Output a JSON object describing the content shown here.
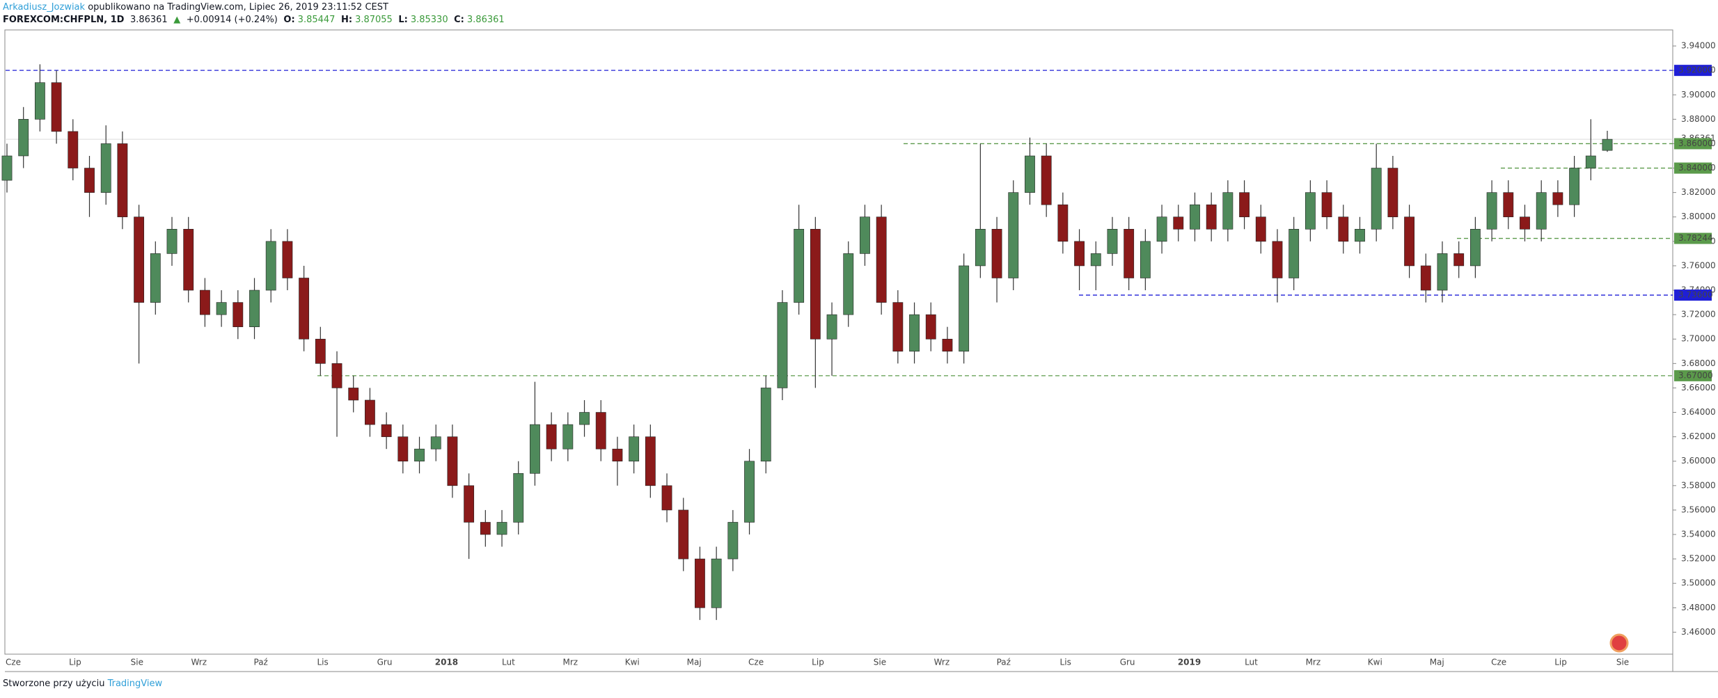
{
  "header": {
    "author": "Arkadiusz_Jozwiak",
    "published": "opublikowano na TradingView.com, Lipiec 26, 2019 23:11:52 CEST",
    "symbol": "FOREXCOM:CHFPLN, 1D",
    "price": "3.86361",
    "change_arrow": "▲",
    "change": "+0.00914 (+0.24%)",
    "o_label": "O:",
    "o": "3.85447",
    "h_label": "H:",
    "h": "3.87055",
    "l_label": "L:",
    "l": "3.85330",
    "c_label": "C:",
    "c": "3.86361"
  },
  "footer": {
    "made_with": "Stworzone przy użyciu",
    "brand": "TradingView"
  },
  "chart_data": {
    "type": "candlestick",
    "up_color": "#4f8a5b",
    "down_color": "#8b1a1a",
    "ylim": [
      3.442,
      3.952
    ],
    "yticks": [
      {
        "value": 3.46,
        "label": "3.46000"
      },
      {
        "value": 3.48,
        "label": "3.48000"
      },
      {
        "value": 3.5,
        "label": "3.50000"
      },
      {
        "value": 3.52,
        "label": "3.52000"
      },
      {
        "value": 3.54,
        "label": "3.54000"
      },
      {
        "value": 3.56,
        "label": "3.56000"
      },
      {
        "value": 3.58,
        "label": "3.58000"
      },
      {
        "value": 3.6,
        "label": "3.60000"
      },
      {
        "value": 3.62,
        "label": "3.62000"
      },
      {
        "value": 3.64,
        "label": "3.64000"
      },
      {
        "value": 3.66,
        "label": "3.66000"
      },
      {
        "value": 3.68,
        "label": "3.68000"
      },
      {
        "value": 3.7,
        "label": "3.70000"
      },
      {
        "value": 3.72,
        "label": "3.72000"
      },
      {
        "value": 3.74,
        "label": "3.74000"
      },
      {
        "value": 3.76,
        "label": "3.76000"
      },
      {
        "value": 3.78,
        "label": "3.78000"
      },
      {
        "value": 3.8,
        "label": "3.80000"
      },
      {
        "value": 3.82,
        "label": "3.82000"
      },
      {
        "value": 3.84,
        "label": "3.84000"
      },
      {
        "value": 3.86,
        "label": "3.86000"
      },
      {
        "value": 3.88,
        "label": "3.88000"
      },
      {
        "value": 3.9,
        "label": "3.90000"
      },
      {
        "value": 3.92,
        "label": "3.92000"
      },
      {
        "value": 3.94,
        "label": "3.94000"
      }
    ],
    "xlabels": [
      "Cze",
      "Lip",
      "Sie",
      "Wrz",
      "Paź",
      "Lis",
      "Gru",
      "2018",
      "Lut",
      "Mrz",
      "Kwi",
      "Maj",
      "Cze",
      "Lip",
      "Sie",
      "Wrz",
      "Paź",
      "Lis",
      "Gru",
      "2019",
      "Lut",
      "Mrz",
      "Kwi",
      "Maj",
      "Cze",
      "Lip",
      "Sie"
    ],
    "levels": [
      {
        "value": 3.92,
        "label": "3.92000",
        "color": "#1f1fd6"
      },
      {
        "value": 3.86,
        "label": "3.86000",
        "color": "#5b9a4b"
      },
      {
        "value": 3.84,
        "label": "3.84000",
        "color": "#5b9a4b"
      },
      {
        "value": 3.78244,
        "label": "3.78244",
        "color": "#5b9a4b"
      },
      {
        "value": 3.736,
        "label": "3.73600",
        "color": "#1f1fd6"
      },
      {
        "value": 3.67,
        "label": "3.67000",
        "color": "#5b9a4b"
      }
    ],
    "last_price": {
      "value": 3.86361,
      "label": "3.86361"
    },
    "ohlc": [
      [
        3.83,
        3.86,
        3.82,
        3.85
      ],
      [
        3.85,
        3.89,
        3.84,
        3.88
      ],
      [
        3.88,
        3.925,
        3.87,
        3.91
      ],
      [
        3.91,
        3.92,
        3.86,
        3.87
      ],
      [
        3.87,
        3.88,
        3.83,
        3.84
      ],
      [
        3.84,
        3.85,
        3.8,
        3.82
      ],
      [
        3.82,
        3.875,
        3.81,
        3.86
      ],
      [
        3.86,
        3.87,
        3.79,
        3.8
      ],
      [
        3.8,
        3.81,
        3.68,
        3.73
      ],
      [
        3.73,
        3.78,
        3.72,
        3.77
      ],
      [
        3.77,
        3.8,
        3.76,
        3.79
      ],
      [
        3.79,
        3.8,
        3.73,
        3.74
      ],
      [
        3.74,
        3.75,
        3.71,
        3.72
      ],
      [
        3.72,
        3.74,
        3.71,
        3.73
      ],
      [
        3.73,
        3.74,
        3.7,
        3.71
      ],
      [
        3.71,
        3.75,
        3.7,
        3.74
      ],
      [
        3.74,
        3.79,
        3.73,
        3.78
      ],
      [
        3.78,
        3.79,
        3.74,
        3.75
      ],
      [
        3.75,
        3.76,
        3.69,
        3.7
      ],
      [
        3.7,
        3.71,
        3.67,
        3.68
      ],
      [
        3.68,
        3.69,
        3.62,
        3.66
      ],
      [
        3.66,
        3.67,
        3.64,
        3.65
      ],
      [
        3.65,
        3.66,
        3.62,
        3.63
      ],
      [
        3.63,
        3.64,
        3.61,
        3.62
      ],
      [
        3.62,
        3.63,
        3.59,
        3.6
      ],
      [
        3.6,
        3.62,
        3.59,
        3.61
      ],
      [
        3.61,
        3.63,
        3.6,
        3.62
      ],
      [
        3.62,
        3.63,
        3.57,
        3.58
      ],
      [
        3.58,
        3.59,
        3.52,
        3.55
      ],
      [
        3.55,
        3.56,
        3.53,
        3.54
      ],
      [
        3.54,
        3.56,
        3.53,
        3.55
      ],
      [
        3.55,
        3.6,
        3.54,
        3.59
      ],
      [
        3.59,
        3.665,
        3.58,
        3.63
      ],
      [
        3.63,
        3.64,
        3.6,
        3.61
      ],
      [
        3.61,
        3.64,
        3.6,
        3.63
      ],
      [
        3.63,
        3.65,
        3.62,
        3.64
      ],
      [
        3.64,
        3.65,
        3.6,
        3.61
      ],
      [
        3.61,
        3.62,
        3.58,
        3.6
      ],
      [
        3.6,
        3.63,
        3.59,
        3.62
      ],
      [
        3.62,
        3.63,
        3.57,
        3.58
      ],
      [
        3.58,
        3.59,
        3.55,
        3.56
      ],
      [
        3.56,
        3.57,
        3.51,
        3.52
      ],
      [
        3.52,
        3.53,
        3.47,
        3.48
      ],
      [
        3.48,
        3.53,
        3.47,
        3.52
      ],
      [
        3.52,
        3.56,
        3.51,
        3.55
      ],
      [
        3.55,
        3.61,
        3.54,
        3.6
      ],
      [
        3.6,
        3.67,
        3.59,
        3.66
      ],
      [
        3.66,
        3.74,
        3.65,
        3.73
      ],
      [
        3.73,
        3.81,
        3.72,
        3.79
      ],
      [
        3.79,
        3.8,
        3.66,
        3.7
      ],
      [
        3.7,
        3.73,
        3.67,
        3.72
      ],
      [
        3.72,
        3.78,
        3.71,
        3.77
      ],
      [
        3.77,
        3.81,
        3.76,
        3.8
      ],
      [
        3.8,
        3.81,
        3.72,
        3.73
      ],
      [
        3.73,
        3.74,
        3.68,
        3.69
      ],
      [
        3.69,
        3.73,
        3.68,
        3.72
      ],
      [
        3.72,
        3.73,
        3.69,
        3.7
      ],
      [
        3.7,
        3.71,
        3.68,
        3.69
      ],
      [
        3.69,
        3.77,
        3.68,
        3.76
      ],
      [
        3.76,
        3.86,
        3.75,
        3.79
      ],
      [
        3.79,
        3.8,
        3.73,
        3.75
      ],
      [
        3.75,
        3.83,
        3.74,
        3.82
      ],
      [
        3.82,
        3.865,
        3.81,
        3.85
      ],
      [
        3.85,
        3.86,
        3.8,
        3.81
      ],
      [
        3.81,
        3.82,
        3.77,
        3.78
      ],
      [
        3.78,
        3.79,
        3.74,
        3.76
      ],
      [
        3.76,
        3.78,
        3.74,
        3.77
      ],
      [
        3.77,
        3.8,
        3.76,
        3.79
      ],
      [
        3.79,
        3.8,
        3.74,
        3.75
      ],
      [
        3.75,
        3.79,
        3.74,
        3.78
      ],
      [
        3.78,
        3.81,
        3.77,
        3.8
      ],
      [
        3.8,
        3.81,
        3.78,
        3.79
      ],
      [
        3.79,
        3.82,
        3.78,
        3.81
      ],
      [
        3.81,
        3.82,
        3.78,
        3.79
      ],
      [
        3.79,
        3.83,
        3.78,
        3.82
      ],
      [
        3.82,
        3.83,
        3.79,
        3.8
      ],
      [
        3.8,
        3.81,
        3.77,
        3.78
      ],
      [
        3.78,
        3.79,
        3.73,
        3.75
      ],
      [
        3.75,
        3.8,
        3.74,
        3.79
      ],
      [
        3.79,
        3.83,
        3.78,
        3.82
      ],
      [
        3.82,
        3.83,
        3.79,
        3.8
      ],
      [
        3.8,
        3.81,
        3.77,
        3.78
      ],
      [
        3.78,
        3.8,
        3.77,
        3.79
      ],
      [
        3.79,
        3.86,
        3.78,
        3.84
      ],
      [
        3.84,
        3.85,
        3.79,
        3.8
      ],
      [
        3.8,
        3.81,
        3.75,
        3.76
      ],
      [
        3.76,
        3.77,
        3.73,
        3.74
      ],
      [
        3.74,
        3.78,
        3.73,
        3.77
      ],
      [
        3.77,
        3.78,
        3.75,
        3.76
      ],
      [
        3.76,
        3.8,
        3.75,
        3.79
      ],
      [
        3.79,
        3.83,
        3.78,
        3.82
      ],
      [
        3.82,
        3.83,
        3.79,
        3.8
      ],
      [
        3.8,
        3.81,
        3.78,
        3.79
      ],
      [
        3.79,
        3.83,
        3.78,
        3.82
      ],
      [
        3.82,
        3.83,
        3.8,
        3.81
      ],
      [
        3.81,
        3.85,
        3.8,
        3.84
      ],
      [
        3.84,
        3.88,
        3.83,
        3.85
      ],
      [
        3.85447,
        3.87055,
        3.8533,
        3.86361
      ]
    ]
  }
}
